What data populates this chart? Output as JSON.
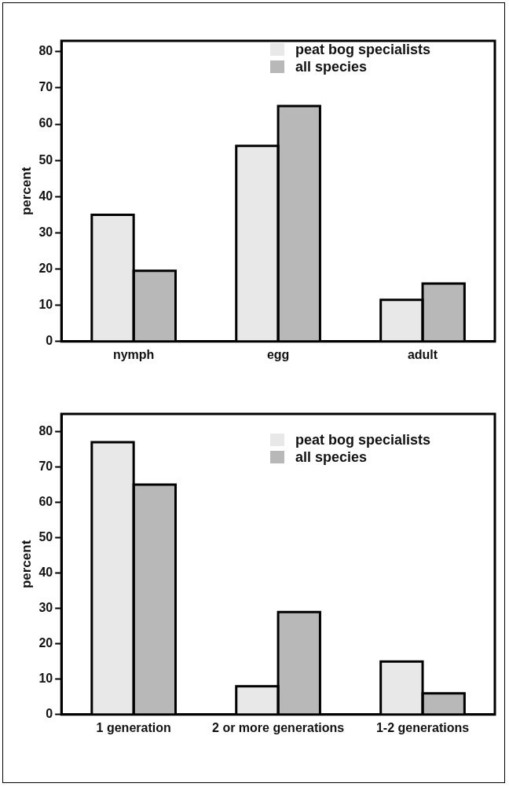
{
  "chart_data": [
    {
      "type": "bar",
      "categories": [
        "nymph",
        "egg",
        "adult"
      ],
      "ylabel": "percent",
      "ylim": [
        0,
        83
      ],
      "yticks": [
        0,
        10,
        20,
        30,
        40,
        50,
        60,
        70,
        80
      ],
      "grid": false,
      "legend": "top right",
      "series": [
        {
          "name": "peat bog specialists",
          "color": "#e8e8e8",
          "values": [
            35,
            54,
            11.5
          ]
        },
        {
          "name": "all species",
          "color": "#b8b8b8",
          "values": [
            19.5,
            65,
            16
          ]
        }
      ]
    },
    {
      "type": "bar",
      "categories": [
        "1 generation",
        "2 or more generations",
        "1-2 generations"
      ],
      "ylabel": "percent",
      "ylim": [
        0,
        85
      ],
      "yticks": [
        0,
        10,
        20,
        30,
        40,
        50,
        60,
        70,
        80
      ],
      "grid": false,
      "legend": "top right",
      "series": [
        {
          "name": "peat bog specialists",
          "color": "#e8e8e8",
          "values": [
            77,
            8,
            15
          ]
        },
        {
          "name": "all species",
          "color": "#b8b8b8",
          "values": [
            65,
            29,
            6
          ]
        }
      ]
    }
  ]
}
